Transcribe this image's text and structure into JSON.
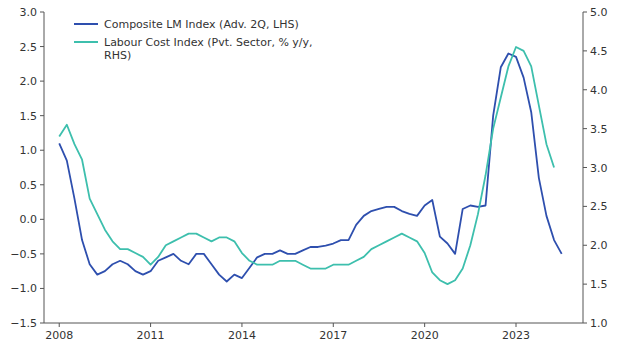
{
  "chart_data": {
    "type": "line",
    "legend": "upper left",
    "grid": false,
    "xlim": [
      2007.5,
      2025.2
    ],
    "xticks": [
      2008,
      2011,
      2014,
      2017,
      2020,
      2023
    ],
    "ylim": [
      -1.5,
      3.0
    ],
    "yticks": [
      {
        "value": -1.5,
        "label": "−1.5"
      },
      {
        "value": -1.0,
        "label": "−1.0"
      },
      {
        "value": -0.5,
        "label": "−0.5"
      },
      {
        "value": 0.0,
        "label": "0.0"
      },
      0.5,
      {
        "value": 1.0,
        "label": "1.0"
      },
      1.5,
      {
        "value": 2.0,
        "label": "2.0"
      },
      2.5,
      {
        "value": 3.0,
        "label": "3.0"
      }
    ],
    "y2lim": [
      1.0,
      5.0
    ],
    "y2ticks": [
      {
        "value": 1.0,
        "label": "1.0"
      },
      1.5,
      {
        "value": 2.0,
        "label": "2.0"
      },
      2.5,
      {
        "value": 3.0,
        "label": "3.0"
      },
      3.5,
      {
        "value": 4.0,
        "label": "4.0"
      },
      4.5,
      {
        "value": 5.0,
        "label": "5.0"
      }
    ],
    "series": [
      {
        "name": "Composite LM Index (Adv. 2Q, LHS)",
        "color": "#2e4fae",
        "x": [
          2008.0,
          2008.25,
          2008.5,
          2008.75,
          2009.0,
          2009.25,
          2009.5,
          2009.75,
          2010.0,
          2010.25,
          2010.5,
          2010.75,
          2011.0,
          2011.25,
          2011.5,
          2011.75,
          2012.0,
          2012.25,
          2012.5,
          2012.75,
          2013.0,
          2013.25,
          2013.5,
          2013.75,
          2014.0,
          2014.25,
          2014.5,
          2014.75,
          2015.0,
          2015.25,
          2015.5,
          2015.75,
          2016.0,
          2016.25,
          2016.5,
          2016.75,
          2017.0,
          2017.25,
          2017.5,
          2017.75,
          2018.0,
          2018.25,
          2018.5,
          2018.75,
          2019.0,
          2019.25,
          2019.5,
          2019.75,
          2020.0,
          2020.25,
          2020.5,
          2020.75,
          2021.0,
          2021.25,
          2021.5,
          2021.75,
          2022.0,
          2022.25,
          2022.5,
          2022.75,
          2023.0,
          2023.25,
          2023.5,
          2023.75,
          2024.0,
          2024.25,
          2024.5
        ],
        "values": [
          1.1,
          0.85,
          0.3,
          -0.3,
          -0.65,
          -0.8,
          -0.75,
          -0.65,
          -0.6,
          -0.65,
          -0.75,
          -0.8,
          -0.75,
          -0.6,
          -0.55,
          -0.5,
          -0.6,
          -0.65,
          -0.5,
          -0.5,
          -0.65,
          -0.8,
          -0.9,
          -0.8,
          -0.85,
          -0.7,
          -0.55,
          -0.5,
          -0.5,
          -0.45,
          -0.5,
          -0.5,
          -0.45,
          -0.4,
          -0.4,
          -0.38,
          -0.35,
          -0.3,
          -0.3,
          -0.08,
          0.05,
          0.12,
          0.15,
          0.18,
          0.18,
          0.12,
          0.08,
          0.05,
          0.2,
          0.28,
          -0.25,
          -0.35,
          -0.5,
          0.15,
          0.2,
          0.18,
          0.2,
          1.5,
          2.2,
          2.4,
          2.35,
          2.05,
          1.55,
          0.6,
          0.05,
          -0.3,
          -0.5
        ]
      },
      {
        "name": "Labour Cost Index (Pvt. Sector, % y/y,\nRHS)",
        "color": "#3dbfad",
        "axis": "y2",
        "x": [
          2008.0,
          2008.25,
          2008.5,
          2008.75,
          2009.0,
          2009.25,
          2009.5,
          2009.75,
          2010.0,
          2010.25,
          2010.5,
          2010.75,
          2011.0,
          2011.25,
          2011.5,
          2011.75,
          2012.0,
          2012.25,
          2012.5,
          2012.75,
          2013.0,
          2013.25,
          2013.5,
          2013.75,
          2014.0,
          2014.25,
          2014.5,
          2014.75,
          2015.0,
          2015.25,
          2015.5,
          2015.75,
          2016.0,
          2016.25,
          2016.5,
          2016.75,
          2017.0,
          2017.25,
          2017.5,
          2017.75,
          2018.0,
          2018.25,
          2018.5,
          2018.75,
          2019.0,
          2019.25,
          2019.5,
          2019.75,
          2020.0,
          2020.25,
          2020.5,
          2020.75,
          2021.0,
          2021.25,
          2021.5,
          2021.75,
          2022.0,
          2022.25,
          2022.5,
          2022.75,
          2023.0,
          2023.25,
          2023.5,
          2023.75,
          2024.0,
          2024.25
        ],
        "values": [
          3.4,
          3.55,
          3.3,
          3.1,
          2.6,
          2.4,
          2.2,
          2.05,
          1.95,
          1.95,
          1.9,
          1.85,
          1.75,
          1.85,
          2.0,
          2.05,
          2.1,
          2.15,
          2.15,
          2.1,
          2.05,
          2.1,
          2.1,
          2.05,
          1.9,
          1.8,
          1.75,
          1.75,
          1.75,
          1.8,
          1.8,
          1.8,
          1.75,
          1.7,
          1.7,
          1.7,
          1.75,
          1.75,
          1.75,
          1.8,
          1.85,
          1.95,
          2.0,
          2.05,
          2.1,
          2.15,
          2.1,
          2.05,
          1.9,
          1.65,
          1.55,
          1.5,
          1.55,
          1.7,
          2.0,
          2.4,
          2.9,
          3.5,
          3.9,
          4.3,
          4.55,
          4.5,
          4.3,
          3.8,
          3.3,
          3.0
        ]
      }
    ]
  }
}
